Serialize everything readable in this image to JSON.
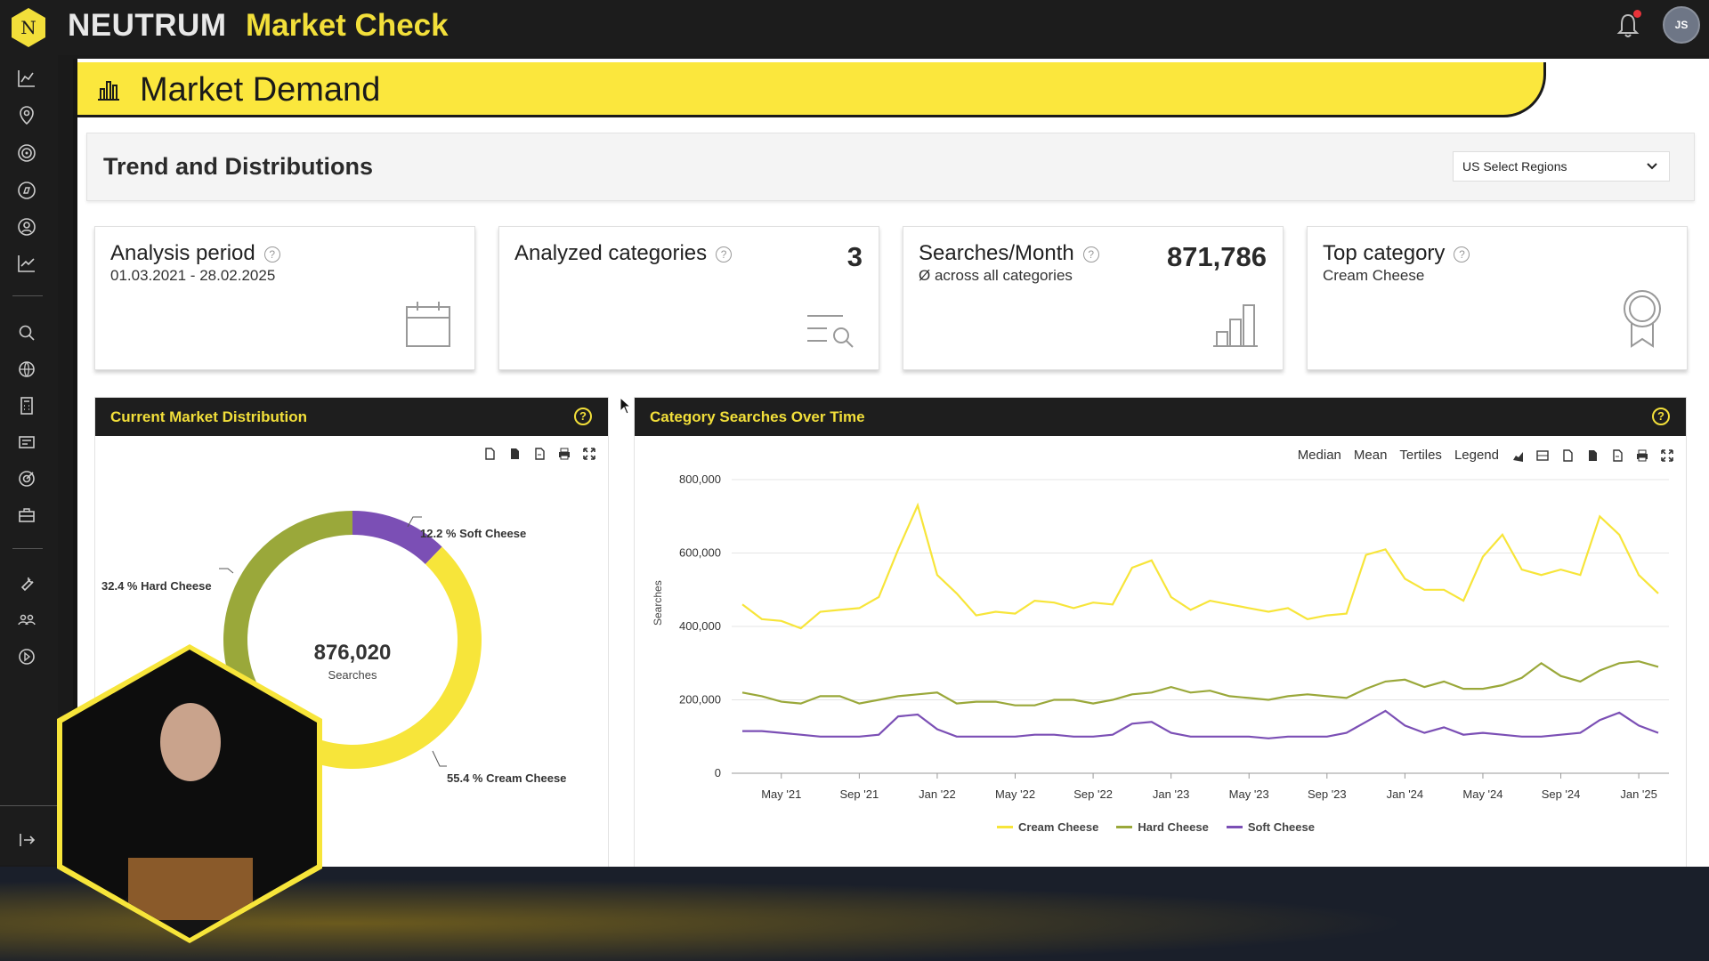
{
  "topbar": {
    "brand": "NEUTRUM",
    "app_name": "Market Check",
    "logo_letter": "N",
    "user_initials": "JS"
  },
  "sidebar": {
    "icons": [
      "analytics-icon",
      "location-icon",
      "target-icon",
      "compass-icon",
      "user-search-icon",
      "trend-icon",
      "search-icon",
      "globe-icon",
      "calculator-icon",
      "card-icon",
      "goal-icon",
      "briefcase-icon",
      "wrench-icon",
      "team-icon",
      "play-icon",
      "logout-icon"
    ]
  },
  "page": {
    "title": "Market Demand",
    "section_title": "Trend and Distributions",
    "region_select": "US Select Regions"
  },
  "kpis": {
    "analysis_period": {
      "title": "Analysis period",
      "sub": "01.03.2021 - 28.02.2025"
    },
    "analyzed_categories": {
      "title": "Analyzed categories",
      "value": "3"
    },
    "searches_month": {
      "title": "Searches/Month",
      "sub": "Ø across all categories",
      "value": "871,786"
    },
    "top_category": {
      "title": "Top category",
      "sub": "Cream Cheese"
    }
  },
  "distribution_panel": {
    "title": "Current Market Distribution",
    "center_value": "876,020",
    "center_label": "Searches",
    "labels": {
      "soft": "12.2 % Soft Cheese",
      "hard": "32.4 % Hard Cheese",
      "cream": "55.4 % Cream Cheese"
    }
  },
  "trend_panel": {
    "title": "Category Searches Over Time",
    "toolbar": [
      "Median",
      "Mean",
      "Tertiles",
      "Legend"
    ],
    "ylabel": "Searches"
  },
  "colors": {
    "accent_yellow": "#fbe73d",
    "cream": "#f7e53a",
    "hard": "#9aa83a",
    "soft": "#7b4fb5"
  },
  "chart_data": [
    {
      "type": "pie",
      "categories": [
        "Cream Cheese",
        "Hard Cheese",
        "Soft Cheese"
      ],
      "values": [
        55.4,
        32.4,
        12.2
      ],
      "total": 876020
    },
    {
      "type": "line",
      "ylabel": "Searches",
      "ylim": [
        0,
        800000
      ],
      "yticks": [
        "800,000",
        "600,000",
        "400,000",
        "200,000",
        "0"
      ],
      "xtick_labels": [
        "May '21",
        "Sep '21",
        "Jan '22",
        "May '22",
        "Sep '22",
        "Jan '23",
        "May '23",
        "Sep '23",
        "Jan '24",
        "May '24",
        "Sep '24",
        "Jan '25"
      ],
      "x": [
        "2021-03",
        "2021-04",
        "2021-05",
        "2021-06",
        "2021-07",
        "2021-08",
        "2021-09",
        "2021-10",
        "2021-11",
        "2021-12",
        "2022-01",
        "2022-02",
        "2022-03",
        "2022-04",
        "2022-05",
        "2022-06",
        "2022-07",
        "2022-08",
        "2022-09",
        "2022-10",
        "2022-11",
        "2022-12",
        "2023-01",
        "2023-02",
        "2023-03",
        "2023-04",
        "2023-05",
        "2023-06",
        "2023-07",
        "2023-08",
        "2023-09",
        "2023-10",
        "2023-11",
        "2023-12",
        "2024-01",
        "2024-02",
        "2024-03",
        "2024-04",
        "2024-05",
        "2024-06",
        "2024-07",
        "2024-08",
        "2024-09",
        "2024-10",
        "2024-11",
        "2024-12",
        "2025-01",
        "2025-02"
      ],
      "series": [
        {
          "name": "Cream Cheese",
          "values": [
            460000,
            420000,
            415000,
            395000,
            440000,
            445000,
            450000,
            480000,
            610000,
            730000,
            540000,
            490000,
            430000,
            440000,
            435000,
            470000,
            465000,
            450000,
            465000,
            460000,
            560000,
            580000,
            480000,
            445000,
            470000,
            460000,
            450000,
            440000,
            450000,
            420000,
            430000,
            435000,
            595000,
            610000,
            530000,
            500000,
            500000,
            470000,
            590000,
            650000,
            555000,
            540000,
            555000,
            540000,
            700000,
            650000,
            540000,
            490000
          ]
        },
        {
          "name": "Hard Cheese",
          "values": [
            220000,
            210000,
            195000,
            190000,
            210000,
            210000,
            190000,
            200000,
            210000,
            215000,
            220000,
            190000,
            195000,
            195000,
            185000,
            185000,
            200000,
            200000,
            190000,
            200000,
            215000,
            220000,
            235000,
            220000,
            225000,
            210000,
            205000,
            200000,
            210000,
            215000,
            210000,
            205000,
            230000,
            250000,
            255000,
            235000,
            250000,
            230000,
            230000,
            240000,
            260000,
            300000,
            265000,
            250000,
            280000,
            300000,
            305000,
            290000
          ]
        },
        {
          "name": "Soft Cheese",
          "values": [
            115000,
            115000,
            110000,
            105000,
            100000,
            100000,
            100000,
            105000,
            155000,
            160000,
            120000,
            100000,
            100000,
            100000,
            100000,
            105000,
            105000,
            100000,
            100000,
            105000,
            135000,
            140000,
            110000,
            100000,
            100000,
            100000,
            100000,
            95000,
            100000,
            100000,
            100000,
            110000,
            140000,
            170000,
            130000,
            110000,
            125000,
            105000,
            110000,
            105000,
            100000,
            100000,
            105000,
            110000,
            145000,
            165000,
            130000,
            110000
          ]
        }
      ]
    }
  ]
}
